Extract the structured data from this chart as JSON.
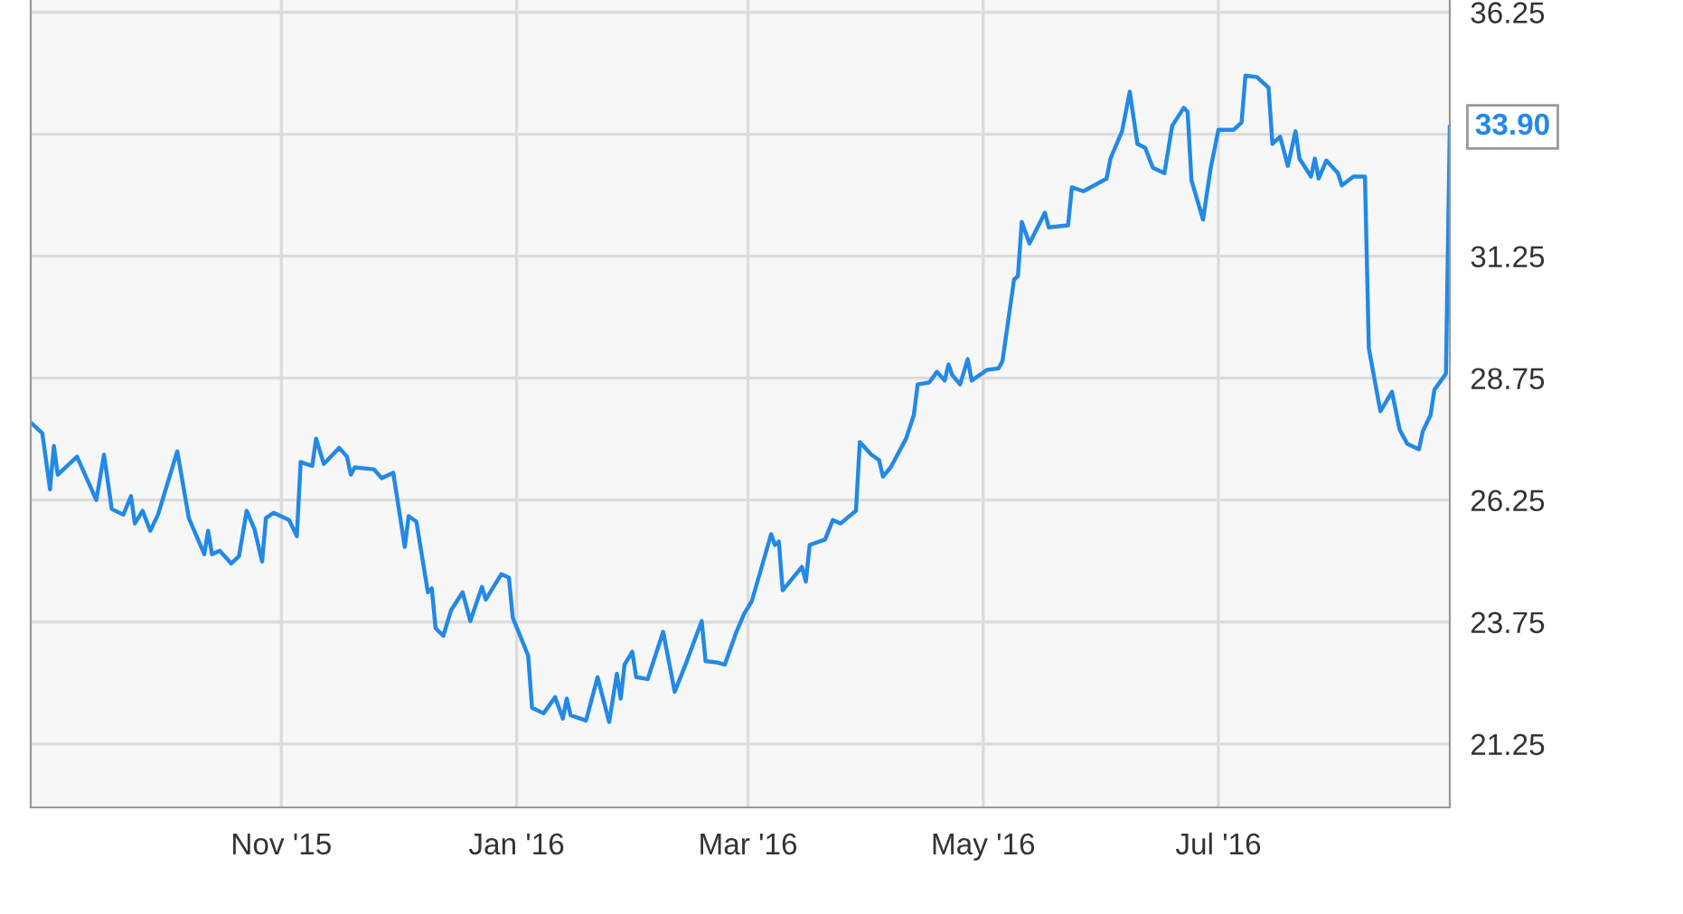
{
  "chart_data": {
    "type": "line",
    "x": [
      "2015-08-28",
      "2015-08-31",
      "2015-09-02",
      "2015-09-03",
      "2015-09-04",
      "2015-09-09",
      "2015-09-14",
      "2015-09-16",
      "2015-09-18",
      "2015-09-21",
      "2015-09-23",
      "2015-09-24",
      "2015-09-26",
      "2015-09-28",
      "2015-09-30",
      "2015-10-05",
      "2015-10-08",
      "2015-10-12",
      "2015-10-13",
      "2015-10-14",
      "2015-10-16",
      "2015-10-19",
      "2015-10-21",
      "2015-10-23",
      "2015-10-25",
      "2015-10-27",
      "2015-10-28",
      "2015-10-30",
      "2015-11-03",
      "2015-11-05",
      "2015-11-06",
      "2015-11-09",
      "2015-11-10",
      "2015-11-12",
      "2015-11-16",
      "2015-11-18",
      "2015-11-19",
      "2015-11-20",
      "2015-11-25",
      "2015-11-27",
      "2015-11-30",
      "2015-12-03",
      "2015-12-04",
      "2015-12-06",
      "2015-12-09",
      "2015-12-10",
      "2015-12-11",
      "2015-12-13",
      "2015-12-15",
      "2015-12-18",
      "2015-12-20",
      "2015-12-23",
      "2015-12-24",
      "2015-12-28",
      "2015-12-30",
      "2015-12-31",
      "2016-01-04",
      "2016-01-05",
      "2016-01-08",
      "2016-01-11",
      "2016-01-13",
      "2016-01-14",
      "2016-01-15",
      "2016-01-19",
      "2016-01-22",
      "2016-01-25",
      "2016-01-27",
      "2016-01-28",
      "2016-01-29",
      "2016-01-31",
      "2016-02-01",
      "2016-02-04",
      "2016-02-08",
      "2016-02-11",
      "2016-02-14",
      "2016-02-18",
      "2016-02-19",
      "2016-02-22",
      "2016-02-24",
      "2016-02-27",
      "2016-02-29",
      "2016-03-02",
      "2016-03-07",
      "2016-03-08",
      "2016-03-09",
      "2016-03-10",
      "2016-03-15",
      "2016-03-16",
      "2016-03-17",
      "2016-03-21",
      "2016-03-23",
      "2016-03-25",
      "2016-03-29",
      "2016-03-30",
      "2016-04-02",
      "2016-04-04",
      "2016-04-05",
      "2016-04-07",
      "2016-04-11",
      "2016-04-13",
      "2016-04-14",
      "2016-04-17",
      "2016-04-19",
      "2016-04-21",
      "2016-04-22",
      "2016-04-23",
      "2016-04-25",
      "2016-04-27",
      "2016-04-28",
      "2016-05-02",
      "2016-05-05",
      "2016-05-06",
      "2016-05-09",
      "2016-05-10",
      "2016-05-11",
      "2016-05-13",
      "2016-05-17",
      "2016-05-18",
      "2016-05-23",
      "2016-05-24",
      "2016-05-27",
      "2016-06-02",
      "2016-06-03",
      "2016-06-06",
      "2016-06-08",
      "2016-06-10",
      "2016-06-12",
      "2016-06-14",
      "2016-06-17",
      "2016-06-19",
      "2016-06-22",
      "2016-06-23",
      "2016-06-24",
      "2016-06-27",
      "2016-06-29",
      "2016-07-01",
      "2016-07-05",
      "2016-07-07",
      "2016-07-08",
      "2016-07-11",
      "2016-07-14",
      "2016-07-15",
      "2016-07-17",
      "2016-07-19",
      "2016-07-21",
      "2016-07-22",
      "2016-07-25",
      "2016-07-26",
      "2016-07-27",
      "2016-07-29",
      "2016-08-01",
      "2016-08-02",
      "2016-08-05",
      "2016-08-08",
      "2016-08-09",
      "2016-08-12",
      "2016-08-15",
      "2016-08-17",
      "2016-08-19",
      "2016-08-22",
      "2016-08-23",
      "2016-08-25",
      "2016-08-26",
      "2016-08-29",
      "2016-08-30"
    ],
    "series": [
      {
        "color": "#2289e6",
        "values": [
          27.84,
          27.62,
          26.47,
          27.36,
          26.77,
          27.14,
          26.25,
          27.18,
          26.07,
          25.95,
          26.33,
          25.77,
          26.03,
          25.62,
          25.95,
          27.25,
          25.88,
          25.14,
          25.62,
          25.14,
          25.21,
          24.95,
          25.1,
          26.03,
          25.66,
          24.99,
          25.88,
          25.99,
          25.84,
          25.51,
          27.03,
          26.95,
          27.51,
          26.99,
          27.32,
          27.14,
          26.77,
          26.92,
          26.88,
          26.7,
          26.81,
          25.29,
          25.92,
          25.81,
          24.36,
          24.44,
          23.62,
          23.47,
          23.99,
          24.36,
          23.77,
          24.47,
          24.21,
          24.73,
          24.66,
          23.84,
          23.06,
          21.99,
          21.88,
          22.21,
          21.77,
          22.18,
          21.84,
          21.73,
          22.62,
          21.7,
          22.69,
          22.18,
          22.88,
          23.14,
          22.62,
          22.58,
          23.55,
          22.32,
          22.92,
          23.77,
          22.95,
          22.92,
          22.88,
          23.55,
          23.92,
          24.18,
          25.55,
          25.33,
          25.4,
          24.4,
          24.88,
          24.58,
          25.33,
          25.44,
          25.84,
          25.77,
          26.03,
          27.44,
          27.18,
          27.07,
          26.73,
          26.92,
          27.51,
          27.99,
          28.62,
          28.66,
          28.88,
          28.7,
          29.03,
          28.81,
          28.62,
          29.14,
          28.7,
          28.92,
          28.95,
          29.1,
          30.77,
          30.84,
          31.95,
          31.51,
          32.14,
          31.84,
          31.88,
          32.66,
          32.58,
          32.84,
          33.25,
          33.81,
          34.62,
          33.55,
          33.47,
          33.06,
          32.95,
          33.92,
          34.29,
          34.21,
          32.81,
          32.0,
          33.06,
          33.84,
          33.84,
          33.99,
          34.95,
          34.92,
          34.7,
          33.55,
          33.7,
          33.1,
          33.81,
          33.25,
          32.88,
          33.25,
          32.84,
          33.21,
          32.95,
          32.7,
          32.88,
          32.88,
          29.36,
          28.07,
          28.47,
          27.69,
          27.4,
          27.29,
          27.66,
          27.99,
          28.51,
          28.84,
          33.9
        ]
      }
    ],
    "xlim": [
      "2015-08-28",
      "2016-08-30"
    ],
    "xticks": [
      {
        "value": "2015-11-01",
        "label": "Nov '15"
      },
      {
        "value": "2016-01-01",
        "label": "Jan '16"
      },
      {
        "value": "2016-03-01",
        "label": "Mar '16"
      },
      {
        "value": "2016-05-01",
        "label": "May '16"
      },
      {
        "value": "2016-07-01",
        "label": "Jul '16"
      }
    ],
    "ylim": [
      19.95,
      36.5
    ],
    "yticks": [
      21.25,
      23.75,
      26.25,
      28.75,
      31.25,
      {
        "value": 33.75,
        "label": null
      },
      36.25
    ],
    "grid": true,
    "line_style": "solid",
    "annotations": [
      {
        "text": "33.90",
        "x": "2016-08-30",
        "y": 33.9
      }
    ]
  }
}
